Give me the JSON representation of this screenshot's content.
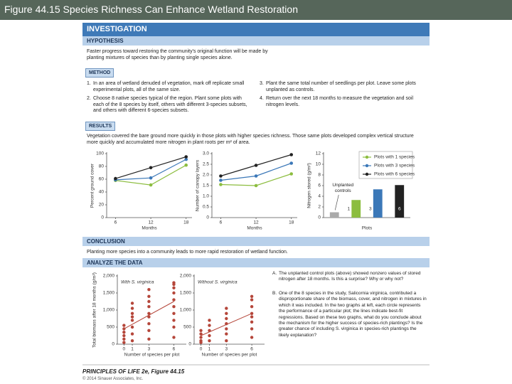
{
  "slide_title": "Figure 44.15  Species Richness Can Enhance Wetland Restoration",
  "figure": {
    "banner": "INVESTIGATION",
    "hypothesis": {
      "heading": "HYPOTHESIS",
      "text": "Faster progress toward restoring the community's original function will be made by planting mixtures of species than by planting single species alone."
    },
    "method": {
      "heading": "METHOD",
      "steps": [
        {
          "number": "1.",
          "text": "In an area of wetland denuded of vegetation, mark off replicate small experimental plots, all of the same size."
        },
        {
          "number": "2.",
          "text": "Choose 8 native species typical of the region. Plant some plots with each of the 8 species by itself, others with different 3-species subsets, and others with different 6-species subsets."
        },
        {
          "number": "3.",
          "text": "Plant the same total number of seedlings per plot. Leave some plots unplanted as controls."
        },
        {
          "number": "4.",
          "text": "Return over the next 18 months to measure the vegetation and soil nitrogen levels."
        }
      ]
    },
    "results": {
      "heading": "RESULTS",
      "text": "Vegetation covered the bare ground more quickly in those plots with higher species richness. Those same plots developed complex vertical structure more quickly and accumulated more nitrogen in plant roots per m² of area."
    },
    "conclusion": {
      "heading": "CONCLUSION",
      "text": "Planting more species into a community leads to more rapid restoration of wetland function."
    },
    "analyze": {
      "heading": "ANALYZE THE DATA",
      "questions": [
        {
          "letter": "A.",
          "text": "The unplanted control plots (above) showed nonzero values of stored nitrogen after 18 months. Is this a surprise? Why or why not?"
        },
        {
          "letter": "B.",
          "text": "One of the 8 species in the study, Salicornia virginica, contributed a disproportionate share of the biomass, cover, and nitrogen in mixtures in which it was included. In the two graphs at left, each circle represents the performance of a particular plot; the lines indicate best-fit regressions. Based on these two graphs, what do you conclude about the mechanism for the higher success of species-rich plantings? Is the greater chance of including S. virginica in species-rich plantings the likely explanation?"
        }
      ]
    },
    "footer": {
      "book": "PRINCIPLES OF LIFE 2e, Figure 44.15",
      "copyright": "© 2014 Sinauer Associates, Inc."
    }
  },
  "chart_data": [
    {
      "type": "line",
      "ylabel": "Percent ground cover",
      "xlabel": "Months",
      "x": [
        6,
        12,
        18
      ],
      "xlim": [
        4.5,
        19
      ],
      "xticks": [
        6,
        12,
        18
      ],
      "ylim": [
        0,
        100
      ],
      "yticks": [
        0,
        20,
        40,
        60,
        80,
        100
      ],
      "series": [
        {
          "name": "Plots with 1 species",
          "color": "#8cbd3f",
          "values": [
            58,
            51,
            82
          ]
        },
        {
          "name": "Plots with 3 species",
          "color": "#3b78b8",
          "values": [
            59,
            62,
            91
          ]
        },
        {
          "name": "Plots with 6 species",
          "color": "#222222",
          "values": [
            61,
            78,
            95
          ]
        }
      ]
    },
    {
      "type": "line",
      "ylabel": "Number of canopy layers",
      "xlabel": "Months",
      "x": [
        6,
        12,
        18
      ],
      "xlim": [
        4.5,
        19
      ],
      "xticks": [
        6,
        12,
        18
      ],
      "ylim": [
        0,
        3
      ],
      "yticks": [
        0,
        0.5,
        {
          "value": 1,
          "label": "1.0"
        },
        1.5,
        {
          "value": 2,
          "label": "2.0"
        },
        2.5,
        {
          "value": 3,
          "label": "3.0"
        }
      ],
      "series": [
        {
          "color": "#8cbd3f",
          "values": [
            1.55,
            1.5,
            2.05
          ]
        },
        {
          "color": "#3b78b8",
          "values": [
            1.75,
            1.95,
            2.55
          ]
        },
        {
          "color": "#222222",
          "values": [
            1.95,
            2.45,
            2.95
          ]
        }
      ]
    },
    {
      "type": "bar",
      "ylabel": "Nitrogen stored (g/m²)",
      "xlabel": "Plots",
      "categories": [
        "Unplanted controls",
        "1",
        "3",
        "6"
      ],
      "values": [
        1,
        3.3,
        5.3,
        6.1
      ],
      "colors": [
        "#aaaaaa",
        "#8cbd3f",
        "#3b78b8",
        "#222222"
      ],
      "ylim": [
        0,
        12
      ],
      "yticks": [
        0,
        2,
        4,
        6,
        8,
        10,
        12
      ]
    },
    {
      "type": "scatter",
      "title": "With S. virginica",
      "xlabel": "Number of species per plot",
      "ylabel": "Total biomass after 18 months (g/m²)",
      "color": "#b5463a",
      "x": [
        0,
        0,
        0,
        0,
        0,
        0,
        1,
        1,
        1,
        1,
        1,
        1,
        1,
        1,
        3,
        3,
        3,
        3,
        3,
        3,
        3,
        3,
        3,
        6,
        6,
        6,
        6,
        6,
        6,
        6,
        6,
        6,
        6
      ],
      "y": [
        50,
        150,
        250,
        350,
        450,
        550,
        100,
        300,
        500,
        700,
        800,
        900,
        1050,
        1200,
        150,
        400,
        600,
        800,
        900,
        1100,
        1250,
        1400,
        1600,
        200,
        500,
        700,
        900,
        1100,
        1300,
        1500,
        1650,
        1750,
        1800
      ],
      "fit": {
        "x": [
          0,
          6
        ],
        "y": [
          450,
          1250
        ]
      },
      "xlim": [
        -0.8,
        7.5
      ],
      "xticks": [
        0,
        1,
        3,
        6
      ],
      "ylim": [
        0,
        2000
      ],
      "yticks": [
        0,
        500,
        {
          "value": 1000,
          "label": "1,000"
        },
        {
          "value": 1500,
          "label": "1,500"
        },
        {
          "value": 2000,
          "label": "2,000"
        }
      ]
    },
    {
      "type": "scatter",
      "title": "Without S. virginica",
      "xlabel": "Number of species per plot",
      "color": "#b5463a",
      "x": [
        0,
        0,
        0,
        0,
        0,
        1,
        1,
        1,
        1,
        1,
        3,
        3,
        3,
        3,
        3,
        3,
        3,
        6,
        6,
        6,
        6,
        6,
        6,
        6,
        6
      ],
      "y": [
        50,
        100,
        200,
        300,
        400,
        100,
        250,
        400,
        550,
        700,
        100,
        300,
        450,
        600,
        750,
        900,
        1050,
        200,
        450,
        650,
        800,
        900,
        1100,
        1300,
        1400
      ],
      "fit": {
        "x": [
          0,
          6
        ],
        "y": [
          250,
          900
        ]
      },
      "xlim": [
        -0.8,
        7.5
      ],
      "xticks": [
        0,
        1,
        3,
        6
      ],
      "ylim": [
        0,
        2000
      ],
      "yticks": [
        0,
        500,
        {
          "value": 1000,
          "label": "1,000"
        },
        {
          "value": 1500,
          "label": "1,500"
        },
        {
          "value": 2000,
          "label": "2,000"
        }
      ]
    }
  ]
}
